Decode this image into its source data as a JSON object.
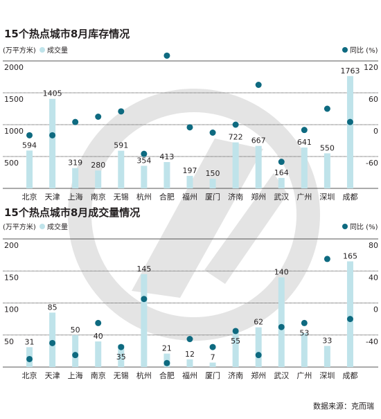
{
  "source_text": "数据来源：克而瑞",
  "colors": {
    "bar": "#bfe3ea",
    "dot": "#0e6a80",
    "text": "#231f20",
    "grid": "#8a8a8a"
  },
  "chart_data": [
    {
      "type": "bar",
      "title": "15个热点城市8月库存情况",
      "left_axis_label": "(万平方米)",
      "bar_legend": "成交量",
      "dot_legend": "同比 (%)",
      "categories": [
        "北京",
        "天津",
        "上海",
        "南京",
        "无锡",
        "杭州",
        "合肥",
        "福州",
        "厦门",
        "济南",
        "郑州",
        "武汉",
        "广州",
        "深圳",
        "成都"
      ],
      "series": [
        {
          "name": "成交量",
          "type": "bar",
          "axis": "left",
          "values": [
            594,
            1405,
            319,
            280,
            591,
            354,
            413,
            197,
            150,
            722,
            667,
            164,
            641,
            550,
            1763
          ]
        },
        {
          "name": "同比 (%)",
          "type": "scatter",
          "axis": "right",
          "values": [
            -20,
            -20,
            5,
            15,
            25,
            -55,
            130,
            -5,
            -15,
            0,
            75,
            -70,
            -10,
            30,
            5
          ]
        }
      ],
      "left_ticks": [
        "2000",
        "1500",
        "1000",
        "500"
      ],
      "left_tick_values": [
        2000,
        1500,
        1000,
        500
      ],
      "left_range": [
        0,
        2000
      ],
      "right_ticks": [
        "120",
        "60",
        "0",
        "-60"
      ],
      "right_tick_values": [
        120,
        60,
        0,
        -60
      ],
      "right_range": [
        -120,
        120
      ]
    },
    {
      "type": "bar",
      "title": "15个热点城市8月成交量情况",
      "left_axis_label": "(万平方米)",
      "bar_legend": "成交量",
      "dot_legend": "同比 (%)",
      "categories": [
        "北京",
        "天津",
        "上海",
        "南京",
        "无锡",
        "杭州",
        "合肥",
        "福州",
        "厦门",
        "济南",
        "郑州",
        "武汉",
        "广州",
        "深圳",
        "成都"
      ],
      "series": [
        {
          "name": "成交量",
          "type": "bar",
          "axis": "left",
          "values": [
            31,
            85,
            50,
            40,
            35,
            145,
            21,
            12,
            7,
            55,
            62,
            140,
            53,
            33,
            165
          ]
        },
        {
          "name": "同比 (%)",
          "type": "scatter",
          "axis": "right",
          "values": [
            -70,
            -50,
            -65,
            -25,
            -55,
            5,
            -75,
            -45,
            -55,
            -35,
            -65,
            -30,
            -25,
            55,
            -20
          ]
        }
      ],
      "left_ticks": [
        "200",
        "150",
        "100",
        "50"
      ],
      "left_tick_values": [
        200,
        150,
        100,
        50
      ],
      "left_range": [
        0,
        200
      ],
      "right_ticks": [
        "80",
        "40",
        "0",
        "-40"
      ],
      "right_tick_values": [
        80,
        40,
        0,
        -40
      ],
      "right_range": [
        -80,
        80
      ]
    }
  ]
}
